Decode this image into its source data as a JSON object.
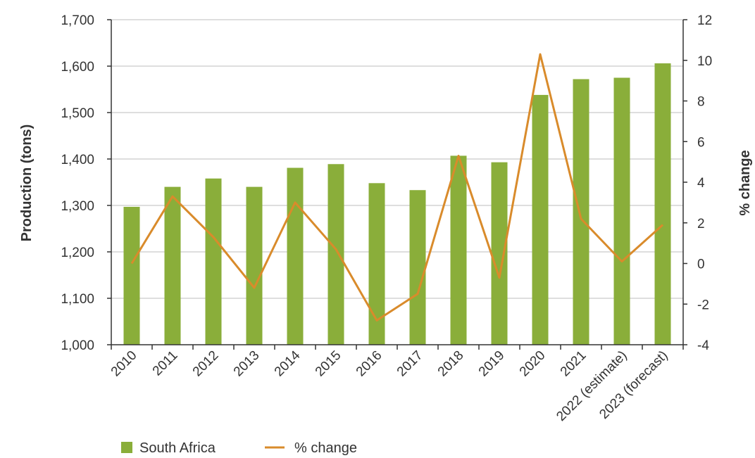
{
  "chart_data": {
    "type": "bar",
    "categories": [
      "2010",
      "2011",
      "2012",
      "2013",
      "2014",
      "2015",
      "2016",
      "2017",
      "2018",
      "2019",
      "2020",
      "2021",
      "2022 (estimate)",
      "2023 (forecast)"
    ],
    "series": [
      {
        "name": "South Africa",
        "type": "bar",
        "axis": "left",
        "color": "#8aae3a",
        "values": [
          1297,
          1340,
          1358,
          1340,
          1381,
          1389,
          1348,
          1333,
          1407,
          1393,
          1538,
          1572,
          1575,
          1606
        ]
      },
      {
        "name": "% change",
        "type": "line",
        "axis": "right",
        "color": "#d98b2b",
        "values": [
          0,
          3.3,
          1.3,
          -1.2,
          3.0,
          0.7,
          -2.8,
          -1.5,
          5.3,
          -0.7,
          10.3,
          2.2,
          0.1,
          1.9
        ]
      }
    ],
    "ylabel": "Production (tons)",
    "ylim": [
      1000,
      1700
    ],
    "yticks": [
      "1,000",
      "1,100",
      "1,200",
      "1,300",
      "1,400",
      "1,500",
      "1,600",
      "1,700"
    ],
    "y2label": "% change",
    "y2lim": [
      -4,
      12
    ],
    "y2ticks": [
      "-4",
      "-2",
      "0",
      "2",
      "4",
      "6",
      "8",
      "10",
      "12"
    ],
    "grid": true,
    "legend_position": "bottom-left"
  }
}
